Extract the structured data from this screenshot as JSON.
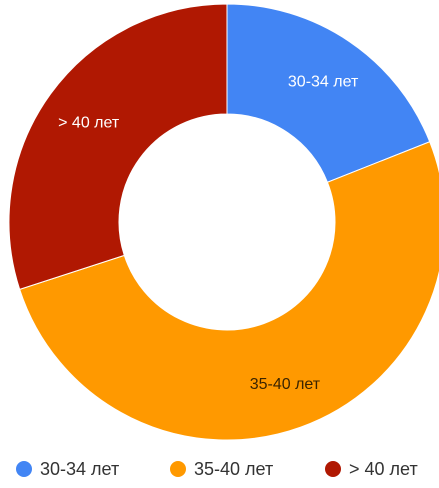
{
  "chart_data": {
    "type": "pie",
    "donut": true,
    "slices": [
      {
        "label": "30-34 лет",
        "value": 19,
        "color": "#4285F4"
      },
      {
        "label": "35-40 лет",
        "value": 51,
        "color": "#FF9900"
      },
      {
        "label": "> 40 лет",
        "value": 30,
        "color": "#B01802"
      }
    ],
    "legend": {
      "position": "bottom",
      "items": [
        "30-34 лет",
        "35-40 лет",
        "> 40 лет"
      ]
    }
  }
}
